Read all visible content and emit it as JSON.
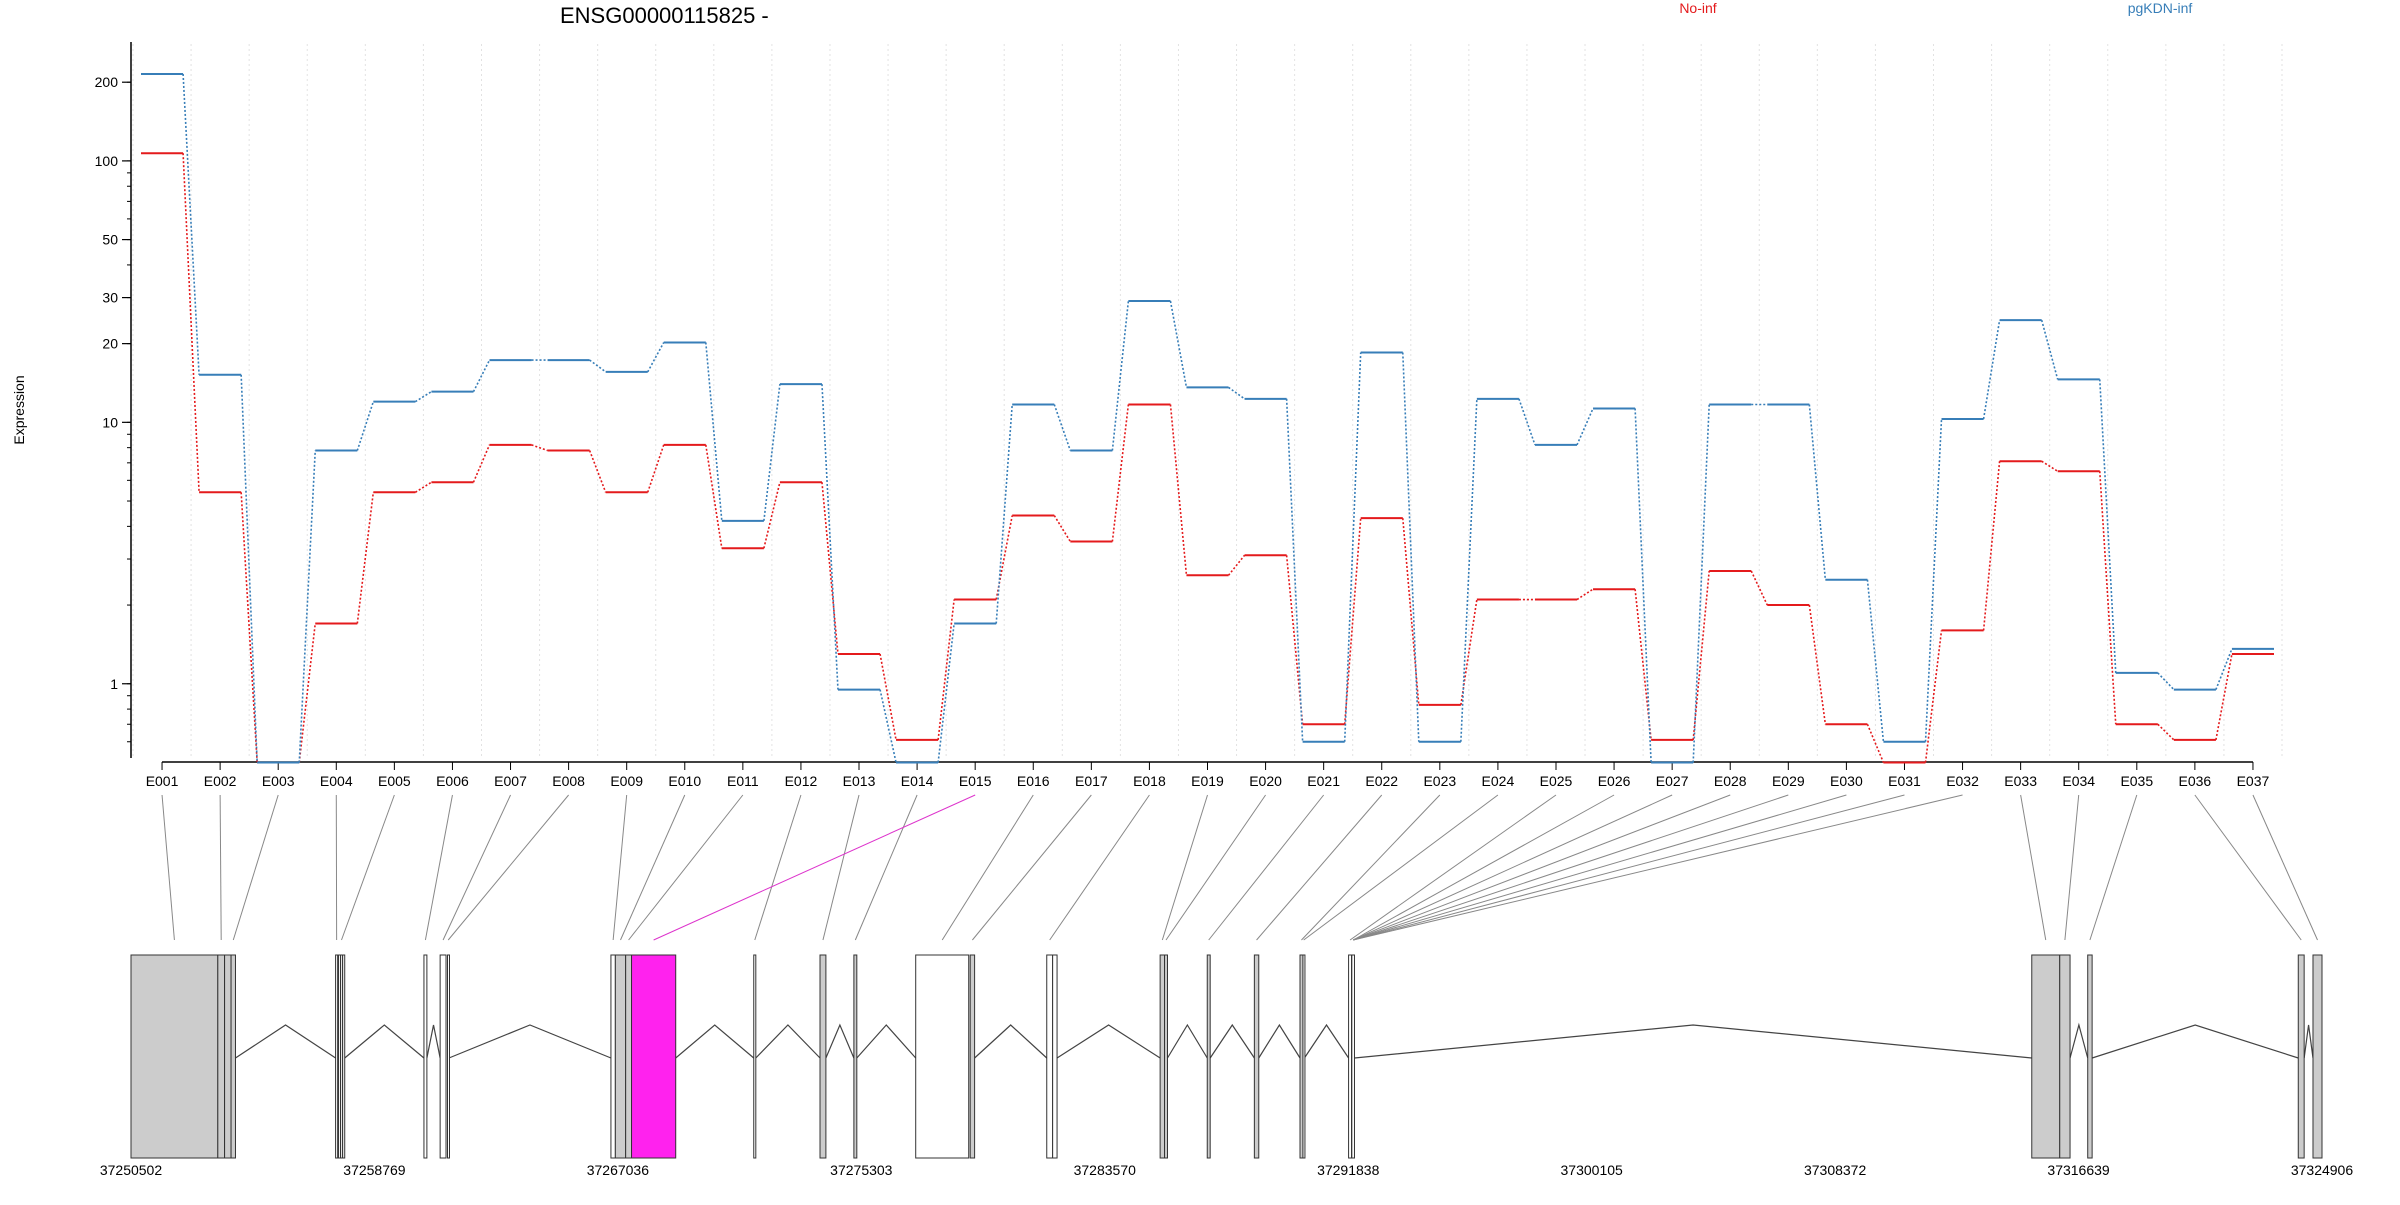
{
  "chart_data": {
    "type": "line",
    "title": "ENSG00000115825 -",
    "ylabel": "Expression",
    "yscale": "log",
    "ylim": [
      0.52,
      280
    ],
    "yticks": [
      1,
      10,
      20,
      30,
      50,
      100,
      200
    ],
    "grid": "vertical dotted",
    "legend": "top",
    "categories": [
      "E001",
      "E002",
      "E003",
      "E004",
      "E005",
      "E006",
      "E007",
      "E008",
      "E009",
      "E010",
      "E011",
      "E012",
      "E013",
      "E014",
      "E015",
      "E016",
      "E017",
      "E018",
      "E019",
      "E020",
      "E021",
      "E022",
      "E023",
      "E024",
      "E025",
      "E026",
      "E027",
      "E028",
      "E029",
      "E030",
      "E031",
      "E032",
      "E033",
      "E034",
      "E035",
      "E036",
      "E037"
    ],
    "highlight_exon": "E015",
    "series": [
      {
        "name": "No-inf",
        "color": "#e41a1c",
        "values": [
          107,
          5.4,
          0.5,
          1.7,
          5.4,
          5.9,
          8.2,
          7.8,
          5.4,
          8.2,
          3.3,
          5.9,
          1.3,
          0.61,
          2.1,
          4.4,
          3.5,
          11.7,
          2.6,
          3.1,
          0.7,
          4.3,
          0.83,
          2.1,
          2.1,
          2.3,
          0.61,
          2.7,
          2.0,
          0.7,
          0.5,
          1.6,
          7.1,
          6.5,
          0.7,
          0.61,
          1.3
        ]
      },
      {
        "name": "pgKDN-inf",
        "color": "#377eb8",
        "values": [
          215,
          15.2,
          0.5,
          7.8,
          12.0,
          13.1,
          17.3,
          17.3,
          15.6,
          20.2,
          4.2,
          14.0,
          0.95,
          0.5,
          1.7,
          11.7,
          7.8,
          29.1,
          13.6,
          12.3,
          0.6,
          18.5,
          0.6,
          12.3,
          8.2,
          11.3,
          0.5,
          11.7,
          11.7,
          2.5,
          0.6,
          10.3,
          24.6,
          14.6,
          1.1,
          0.95,
          1.36
        ]
      }
    ],
    "genome_coords": [
      "37250502",
      "37258769",
      "37267036",
      "37275303",
      "37283570",
      "37291838",
      "37300105",
      "37308372",
      "37316639",
      "37324906"
    ]
  }
}
